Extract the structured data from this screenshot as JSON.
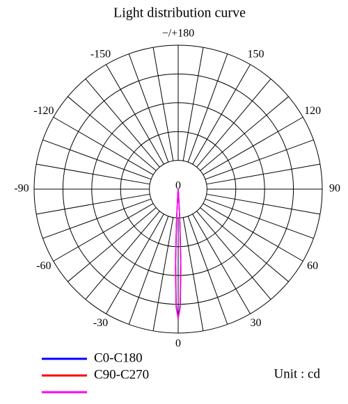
{
  "chart_data": {
    "type": "polar",
    "title": "Light distribution curve",
    "unit": "Unit : cd",
    "rlim": [
      0,
      100
    ],
    "rticks": [
      0
    ],
    "rgrid": [
      20,
      40,
      60,
      80,
      100
    ],
    "spoke_step": 10,
    "angle_ticks": [
      -150,
      -120,
      -90,
      -60,
      -30,
      0,
      30,
      60,
      90,
      120,
      150,
      {
        "value": 180,
        "label": "−/+180"
      }
    ],
    "angles": [
      -10,
      -5,
      -3,
      -2,
      -1,
      0,
      1,
      2,
      3,
      5,
      10
    ],
    "series": [
      {
        "name": "C0-C180",
        "color": "#0000ff",
        "values": [
          0,
          2,
          20,
          50,
          80,
          90,
          80,
          50,
          20,
          2,
          0
        ]
      },
      {
        "name": "C90-C270",
        "color": "#ff0000",
        "values": [
          0,
          3,
          24,
          55,
          82,
          90,
          82,
          55,
          24,
          3,
          0
        ]
      },
      {
        "color": "#ff00ff",
        "values": [
          0,
          2,
          22,
          52,
          81,
          90,
          81,
          52,
          22,
          2,
          0
        ]
      }
    ]
  }
}
